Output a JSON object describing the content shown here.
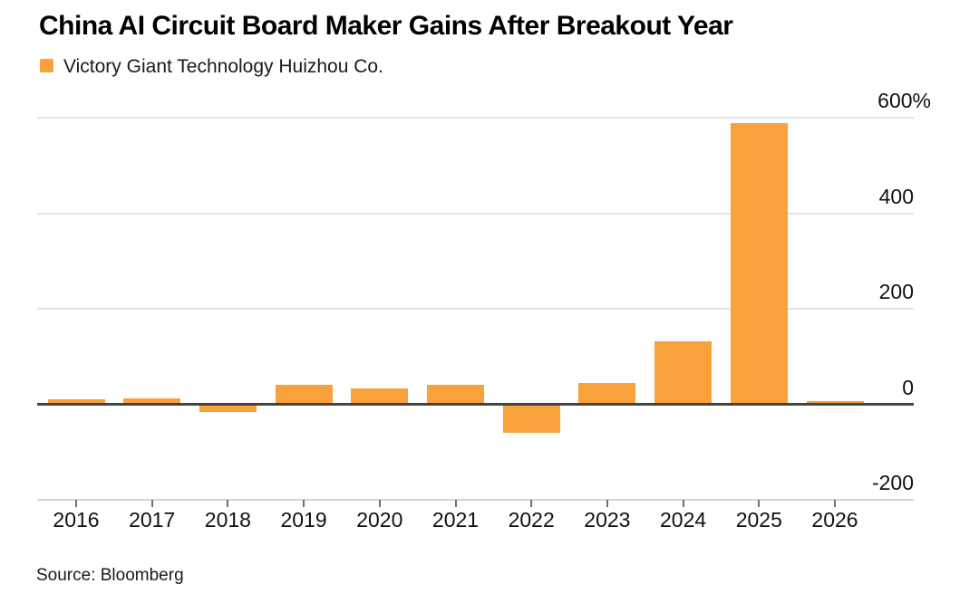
{
  "title": "China AI Circuit Board Maker Gains After Breakout Year",
  "legend": {
    "label": "Victory Giant Technology Huizhou Co."
  },
  "source": "Source: Bloomberg",
  "colors": {
    "bar": "#F9A13B",
    "gridline": "#E2E2E2",
    "zero_line": "#434343",
    "axis_line": "#D4D4D4",
    "tick": "#6E6E6E",
    "text": "#1a1a1a"
  },
  "chart_data": {
    "type": "bar",
    "title": "China AI Circuit Board Maker Gains After Breakout Year",
    "series_name": "Victory Giant Technology Huizhou Co.",
    "categories": [
      "2016",
      "2017",
      "2018",
      "2019",
      "2020",
      "2021",
      "2022",
      "2023",
      "2024",
      "2025",
      "2026"
    ],
    "values": [
      7,
      10,
      -14,
      38,
      30,
      38,
      -57,
      42,
      128,
      585,
      2
    ],
    "unit": "%",
    "xlabel": "",
    "ylabel": "",
    "ylim": [
      -200,
      600
    ],
    "yticks": [
      {
        "value": 600,
        "label": "600%"
      },
      {
        "value": 400,
        "label": "400"
      },
      {
        "value": 200,
        "label": "200"
      },
      {
        "value": 0,
        "label": "0"
      },
      {
        "value": -200,
        "label": "-200"
      }
    ],
    "grid": "horizontal",
    "legend_position": "top-left",
    "bar_color": "#F9A13B"
  }
}
